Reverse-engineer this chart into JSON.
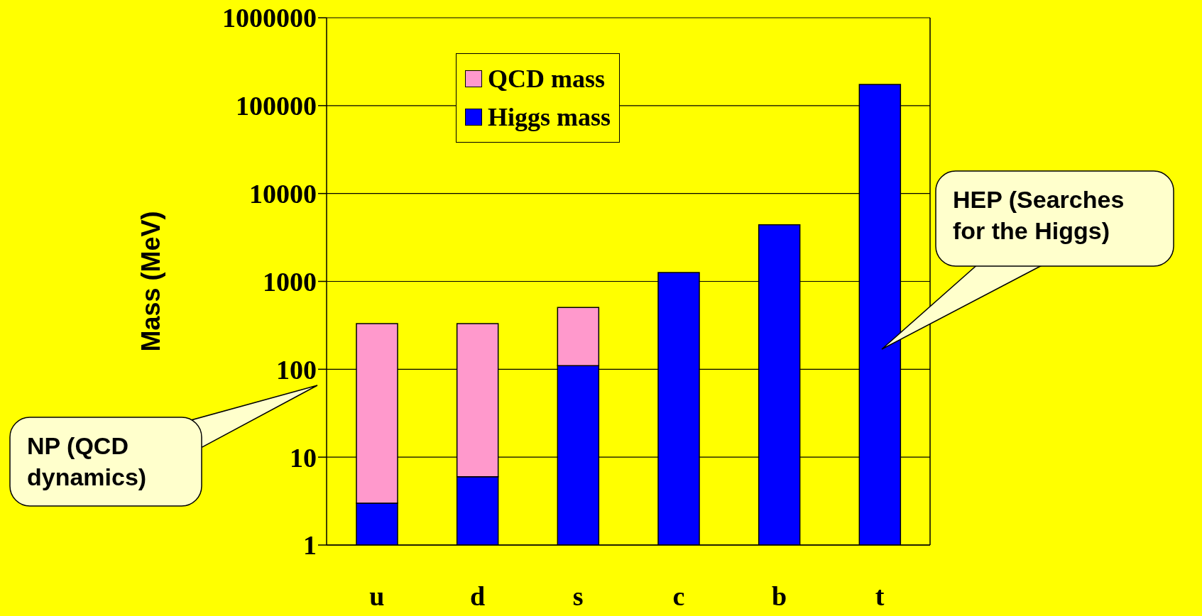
{
  "chart_data": {
    "type": "bar",
    "stacked": true,
    "log": "y",
    "ylabel": "Mass (MeV)",
    "categories": [
      "u",
      "d",
      "s",
      "c",
      "b",
      "t"
    ],
    "series": [
      {
        "name": "Higgs mass",
        "color": "#0000ff",
        "values": [
          3,
          6,
          110,
          1260,
          4400,
          174000
        ]
      },
      {
        "name": "QCD mass",
        "color": "#ff99cc",
        "values": [
          327,
          324,
          394,
          null,
          null,
          null
        ]
      }
    ],
    "ylim": [
      1,
      1000000
    ],
    "yticks": [
      1,
      10,
      100,
      1000,
      10000,
      100000,
      1000000
    ],
    "grid": "y",
    "legend": "top",
    "annotations": [
      "NP (QCD dynamics)",
      "HEP (Searches for the Higgs)"
    ]
  }
}
